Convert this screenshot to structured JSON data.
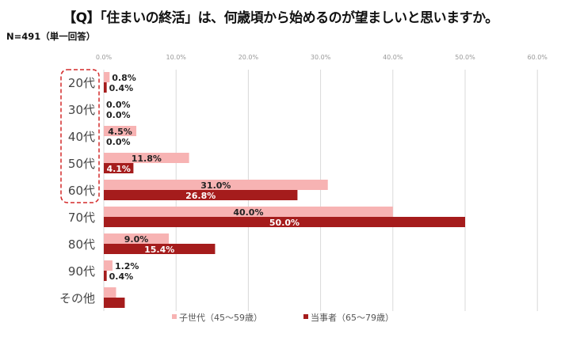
{
  "title": "【Q】「住まいの終活」は、何歳頃から始めるのが望ましいと思いますか。",
  "note": "N=491（単一回答）",
  "chart_data": {
    "type": "bar",
    "orientation": "horizontal",
    "categories": [
      "20代",
      "30代",
      "40代",
      "50代",
      "60代",
      "70代",
      "80代",
      "90代",
      "その他"
    ],
    "series": [
      {
        "name": "子世代（45～59歳）",
        "color": "#f7b3b3",
        "values": [
          0.8,
          0.0,
          4.5,
          11.8,
          31.0,
          40.0,
          9.0,
          1.2,
          1.7
        ],
        "labels": [
          "0.8%",
          "0.0%",
          "4.5%",
          "11.8%",
          "31.0%",
          "40.0%",
          "9.0%",
          "1.2%",
          ""
        ]
      },
      {
        "name": "当事者（65～79歳）",
        "color": "#a51c1c",
        "values": [
          0.4,
          0.0,
          0.0,
          4.1,
          26.8,
          50.0,
          15.4,
          0.4,
          2.9
        ],
        "labels": [
          "0.4%",
          "0.0%",
          "0.0%",
          "4.1%",
          "26.8%",
          "50.0%",
          "15.4%",
          "0.4%",
          ""
        ]
      }
    ],
    "xlim": [
      0,
      60
    ],
    "xticks": [
      "0.0%",
      "10.0%",
      "20.0%",
      "30.0%",
      "40.0%",
      "50.0%",
      "60.0%"
    ],
    "grid": true,
    "legend": "bottom",
    "highlight": {
      "categories": [
        "20代",
        "30代",
        "40代",
        "50代",
        "60代"
      ],
      "color": "#d42a2a",
      "style": "dashed-box"
    }
  }
}
